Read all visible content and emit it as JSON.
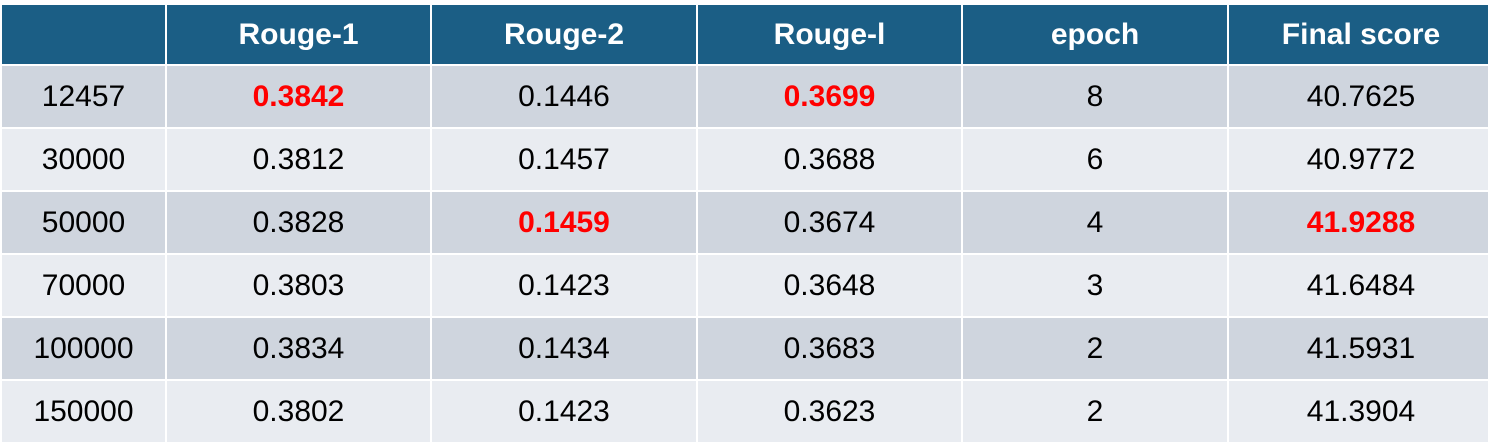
{
  "table": {
    "header": [
      "Rouge-1",
      "Rouge-2",
      "Rouge-l",
      "epoch",
      "Final score"
    ],
    "header_color": "#1b5e85",
    "row_colors": [
      "#cfd5de",
      "#e9ecf1"
    ],
    "rows": [
      [
        12457,
        {
          "text": 0.3842,
          "color": "#ff0000",
          "bold": true
        },
        0.1446,
        {
          "text": 0.3699,
          "color": "#ff0000",
          "bold": true
        },
        8,
        40.7625
      ],
      [
        30000,
        0.3812,
        0.1457,
        0.3688,
        6,
        40.9772
      ],
      [
        50000,
        0.3828,
        {
          "text": 0.1459,
          "color": "#ff0000",
          "bold": true
        },
        0.3674,
        4,
        {
          "text": 41.9288,
          "color": "#ff0000",
          "bold": true
        }
      ],
      [
        70000,
        0.3803,
        0.1423,
        0.3648,
        3,
        41.6484
      ],
      [
        100000,
        0.3834,
        0.1434,
        0.3683,
        2,
        41.5931
      ],
      [
        150000,
        0.3802,
        0.1423,
        0.3623,
        2,
        41.3904
      ]
    ]
  }
}
